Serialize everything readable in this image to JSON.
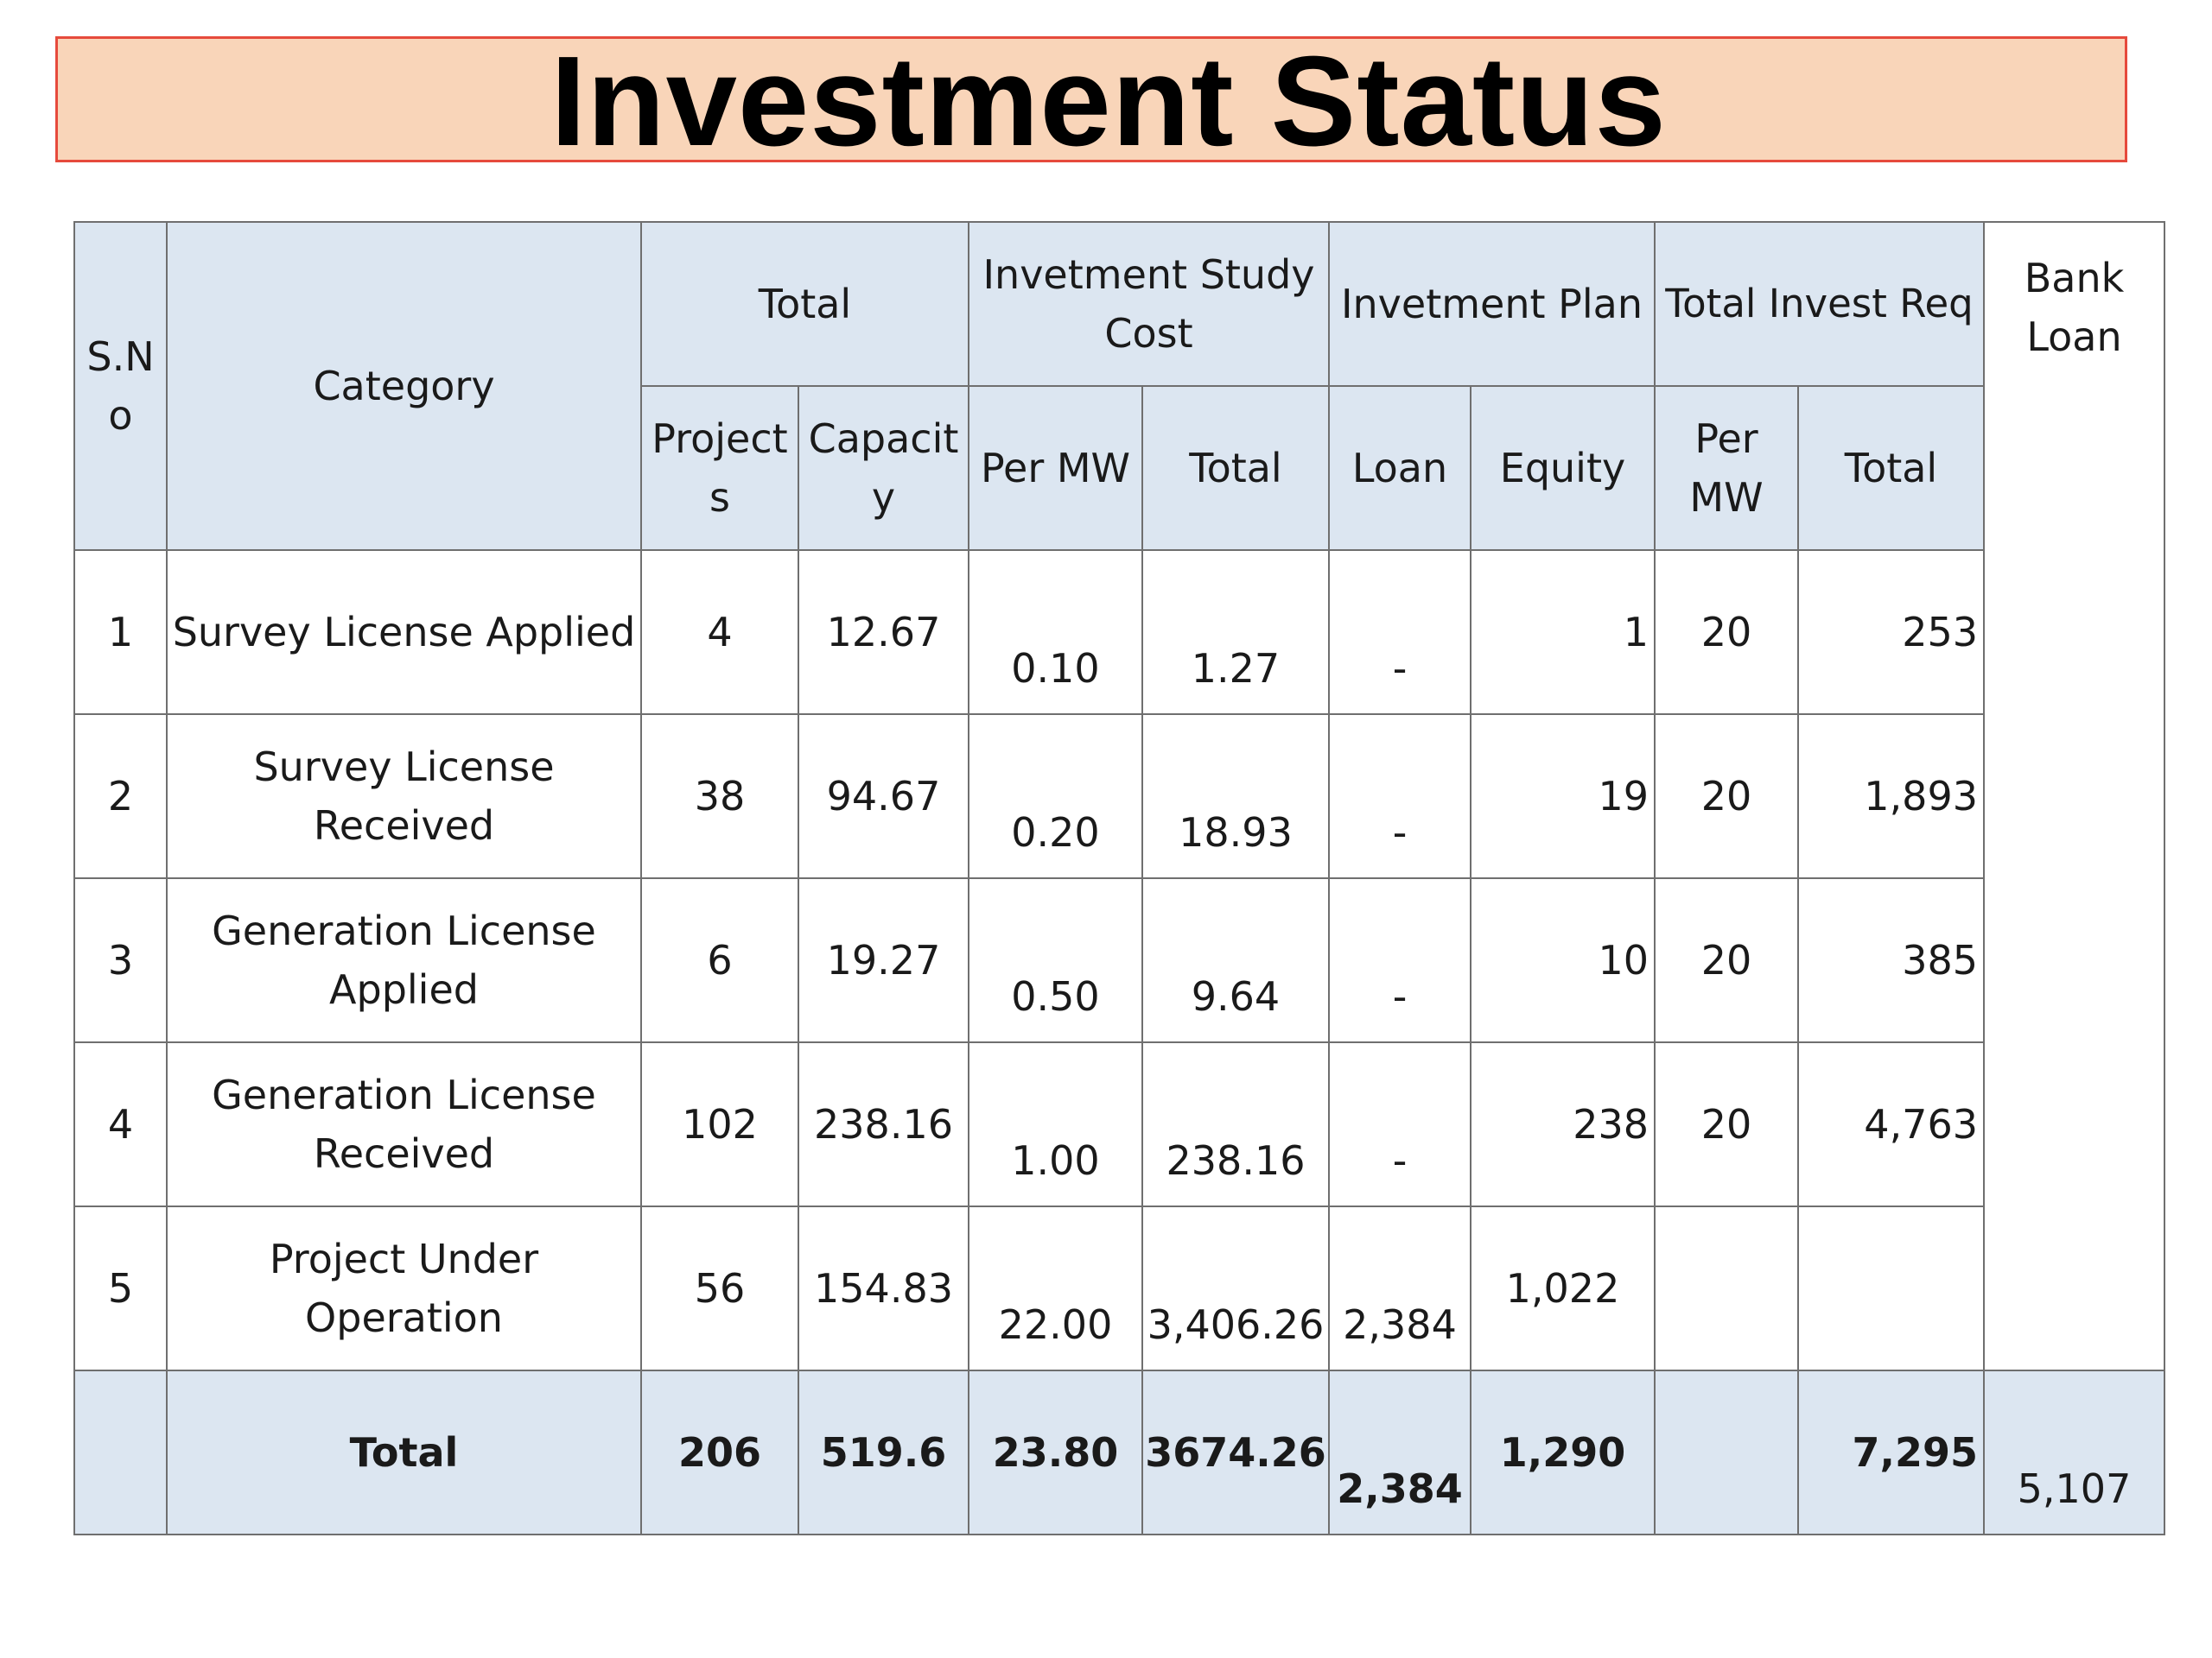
{
  "title": "Investment Status",
  "colors": {
    "title_bg": "#f9d5b9",
    "title_border": "#e64a3c",
    "header_bg": "#dce6f1"
  },
  "headers": {
    "sno": "S.No",
    "category": "Category",
    "total_group": "Total",
    "study_cost_group": "Invetment Study Cost",
    "plan_group": "Invetment Plan",
    "invest_req_group": "Total Invest Req",
    "bank_loan": "Bank Loan",
    "projects": "Projects",
    "capacity": "Capacity",
    "study_per_mw": "Per MW",
    "study_total": "Total",
    "loan": "Loan",
    "equity": "Equity",
    "req_per_mw": "Per MW",
    "req_total": "Total"
  },
  "rows": [
    {
      "sno": "1",
      "category": "Survey License Applied",
      "projects": "4",
      "capacity": "12.67",
      "study_per_mw": "0.10",
      "study_total": "1.27",
      "loan": "-",
      "equity": "1",
      "req_per_mw": "20",
      "req_total": "253"
    },
    {
      "sno": "2",
      "category": "Survey License Received",
      "projects": "38",
      "capacity": "94.67",
      "study_per_mw": "0.20",
      "study_total": "18.93",
      "loan": "-",
      "equity": "19",
      "req_per_mw": "20",
      "req_total": "1,893"
    },
    {
      "sno": "3",
      "category": "Generation License Applied",
      "projects": "6",
      "capacity": "19.27",
      "study_per_mw": "0.50",
      "study_total": "9.64",
      "loan": "-",
      "equity": "10",
      "req_per_mw": "20",
      "req_total": "385"
    },
    {
      "sno": "4",
      "category": "Generation License Received",
      "projects": "102",
      "capacity": "238.16",
      "study_per_mw": "1.00",
      "study_total": "238.16",
      "loan": "-",
      "equity": "238",
      "req_per_mw": "20",
      "req_total": "4,763"
    },
    {
      "sno": "5",
      "category": "Project Under Operation",
      "projects": "56",
      "capacity": "154.83",
      "study_per_mw": "22.00",
      "study_total": "3,406.26",
      "loan": "2,384",
      "equity": "1,022",
      "req_per_mw": "",
      "req_total": ""
    }
  ],
  "total_row": {
    "label": "Total",
    "projects": "206",
    "capacity": "519.6",
    "study_per_mw": "23.80",
    "study_total": "3674.26",
    "loan": "2,384",
    "equity": "1,290",
    "req_total": "7,295",
    "bank_loan": "5,107"
  }
}
